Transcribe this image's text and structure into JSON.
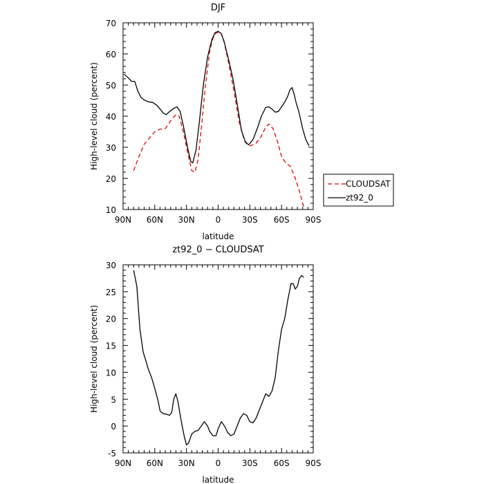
{
  "chart_data": [
    {
      "type": "line",
      "title": "DJF",
      "xlabel": "latitude",
      "ylabel": "High-level cloud (percent)",
      "xlim": [
        90,
        -90
      ],
      "ylim": [
        10,
        70
      ],
      "x_ticks": [
        {
          "value": 90,
          "label": "90N"
        },
        {
          "value": 60,
          "label": "60N"
        },
        {
          "value": 30,
          "label": "30N"
        },
        {
          "value": 0,
          "label": "0"
        },
        {
          "value": -30,
          "label": "30S"
        },
        {
          "value": -60,
          "label": "60S"
        },
        {
          "value": -90,
          "label": "90S"
        }
      ],
      "y_ticks": [
        10,
        20,
        30,
        40,
        50,
        60,
        70
      ],
      "legend_position": "right",
      "series": [
        {
          "name": "CLOUDSAT",
          "color": "#e00000",
          "dash": "dashed",
          "points": [
            [
              80,
              22.5
            ],
            [
              75,
              27
            ],
            [
              70,
              31
            ],
            [
              65,
              33
            ],
            [
              60,
              35
            ],
            [
              55,
              35.8
            ],
            [
              50,
              36
            ],
            [
              45,
              38.5
            ],
            [
              40,
              40.5
            ],
            [
              37,
              40
            ],
            [
              33,
              35
            ],
            [
              28,
              27
            ],
            [
              25,
              22.5
            ],
            [
              22,
              22
            ],
            [
              19,
              26
            ],
            [
              16,
              36
            ],
            [
              12,
              50
            ],
            [
              8,
              61
            ],
            [
              5,
              65
            ],
            [
              2,
              66.8
            ],
            [
              -2,
              67
            ],
            [
              -5,
              65
            ],
            [
              -10,
              57
            ],
            [
              -15,
              48
            ],
            [
              -20,
              38
            ],
            [
              -25,
              32
            ],
            [
              -30,
              30.5
            ],
            [
              -35,
              31
            ],
            [
              -40,
              33
            ],
            [
              -45,
              36.5
            ],
            [
              -48,
              37.5
            ],
            [
              -52,
              36
            ],
            [
              -56,
              32
            ],
            [
              -60,
              27
            ],
            [
              -64,
              25
            ],
            [
              -68,
              24
            ],
            [
              -72,
              21
            ],
            [
              -76,
              17
            ],
            [
              -80,
              12
            ],
            [
              -82,
              10
            ]
          ]
        },
        {
          "name": "zt92_0",
          "color": "#000000",
          "dash": "solid",
          "points": [
            [
              89,
              53.5
            ],
            [
              85,
              52.3
            ],
            [
              82,
              51.2
            ],
            [
              79,
              51.2
            ],
            [
              76,
              48
            ],
            [
              73,
              46
            ],
            [
              70,
              45.2
            ],
            [
              66,
              44.6
            ],
            [
              62,
              44.4
            ],
            [
              58,
              43.5
            ],
            [
              55,
              42.3
            ],
            [
              52,
              41
            ],
            [
              49,
              40.5
            ],
            [
              46,
              41.5
            ],
            [
              42,
              42.5
            ],
            [
              39,
              43
            ],
            [
              36,
              41.5
            ],
            [
              33,
              37
            ],
            [
              29,
              30
            ],
            [
              26,
              25.5
            ],
            [
              24,
              25
            ],
            [
              21,
              29
            ],
            [
              18,
              37.5
            ],
            [
              14,
              50
            ],
            [
              10,
              59
            ],
            [
              6,
              64.5
            ],
            [
              3,
              66.8
            ],
            [
              0,
              67.3
            ],
            [
              -3,
              66.5
            ],
            [
              -6,
              63.5
            ],
            [
              -10,
              58
            ],
            [
              -14,
              52
            ],
            [
              -18,
              44
            ],
            [
              -22,
              35.5
            ],
            [
              -26,
              31.5
            ],
            [
              -29,
              30.8
            ],
            [
              -33,
              32.5
            ],
            [
              -37,
              36
            ],
            [
              -41,
              40
            ],
            [
              -45,
              42.8
            ],
            [
              -48,
              43
            ],
            [
              -51,
              42.3
            ],
            [
              -54,
              41.3
            ],
            [
              -57,
              41.5
            ],
            [
              -60,
              43
            ],
            [
              -63,
              44.5
            ],
            [
              -66,
              46.5
            ],
            [
              -68,
              48.5
            ],
            [
              -70,
              49.2
            ],
            [
              -72,
              47
            ],
            [
              -74,
              44
            ],
            [
              -76,
              42
            ],
            [
              -78,
              39
            ],
            [
              -80,
              36
            ],
            [
              -83,
              32.5
            ],
            [
              -86,
              30.5
            ]
          ]
        }
      ]
    },
    {
      "type": "line",
      "title": "zt92_0 − CLOUDSAT",
      "xlabel": "latitude",
      "ylabel": "High-level cloud (percent)",
      "xlim": [
        90,
        -90
      ],
      "ylim": [
        -5,
        30
      ],
      "x_ticks": [
        {
          "value": 90,
          "label": "90N"
        },
        {
          "value": 60,
          "label": "60N"
        },
        {
          "value": 30,
          "label": "30N"
        },
        {
          "value": 0,
          "label": "0"
        },
        {
          "value": -30,
          "label": "30S"
        },
        {
          "value": -60,
          "label": "60S"
        },
        {
          "value": -90,
          "label": "90S"
        }
      ],
      "y_ticks": [
        -5,
        0,
        5,
        10,
        15,
        20,
        25,
        30
      ],
      "series": [
        {
          "name": "",
          "color": "#000000",
          "dash": "solid",
          "points": [
            [
              80,
              29
            ],
            [
              77,
              26
            ],
            [
              74,
              18
            ],
            [
              71,
              13.8
            ],
            [
              69,
              12.5
            ],
            [
              66,
              10.5
            ],
            [
              63,
              9
            ],
            [
              60,
              7
            ],
            [
              57,
              4.8
            ],
            [
              55,
              2.8
            ],
            [
              52,
              2.3
            ],
            [
              49,
              2.2
            ],
            [
              46,
              2
            ],
            [
              44,
              2.5
            ],
            [
              42,
              5
            ],
            [
              40,
              6
            ],
            [
              38,
              4.5
            ],
            [
              35,
              1
            ],
            [
              32,
              -2
            ],
            [
              30,
              -3.5
            ],
            [
              28,
              -3.2
            ],
            [
              25,
              -1.5
            ],
            [
              22,
              -1
            ],
            [
              19,
              -0.8
            ],
            [
              16,
              0
            ],
            [
              13,
              0.8
            ],
            [
              10,
              0
            ],
            [
              8,
              -1
            ],
            [
              5,
              -1.8
            ],
            [
              2,
              -1.8
            ],
            [
              0,
              -0.5
            ],
            [
              -3,
              0.8
            ],
            [
              -6,
              0
            ],
            [
              -9,
              -1.2
            ],
            [
              -12,
              -1.8
            ],
            [
              -15,
              -1.5
            ],
            [
              -18,
              0
            ],
            [
              -21,
              1.5
            ],
            [
              -24,
              2.3
            ],
            [
              -27,
              2
            ],
            [
              -30,
              0.8
            ],
            [
              -33,
              0.6
            ],
            [
              -36,
              1.5
            ],
            [
              -39,
              3
            ],
            [
              -42,
              4.5
            ],
            [
              -45,
              6
            ],
            [
              -48,
              5.5
            ],
            [
              -51,
              6.5
            ],
            [
              -54,
              9
            ],
            [
              -57,
              14
            ],
            [
              -60,
              18
            ],
            [
              -63,
              20
            ],
            [
              -66,
              23.5
            ],
            [
              -69,
              26.5
            ],
            [
              -71,
              26.5
            ],
            [
              -73,
              25.5
            ],
            [
              -75,
              26
            ],
            [
              -77,
              27.5
            ],
            [
              -79,
              28
            ],
            [
              -81,
              27.7
            ]
          ]
        }
      ]
    }
  ]
}
